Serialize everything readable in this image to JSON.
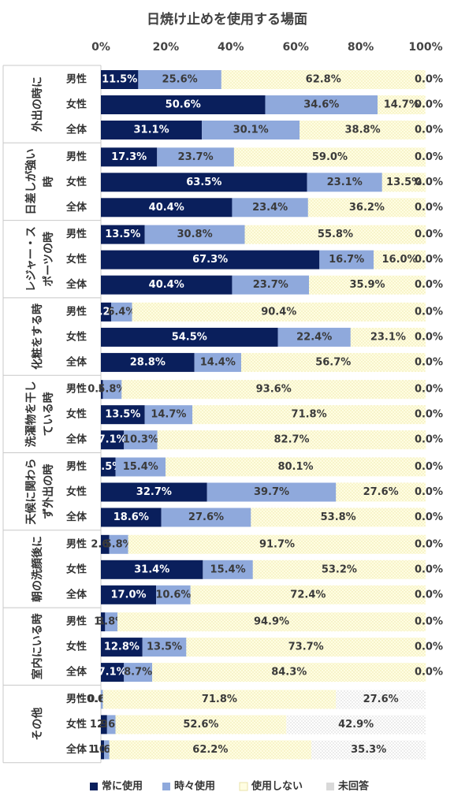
{
  "chart_data": {
    "type": "bar",
    "title": "日焼け止めを使用する場面",
    "stacked": true,
    "orientation": "horizontal",
    "xlim": [
      0,
      100
    ],
    "x_ticks": [
      "0%",
      "20%",
      "40%",
      "60%",
      "80%",
      "100%"
    ],
    "legend_position": "bottom",
    "series": [
      {
        "name": "常に使用",
        "color": "#0a1f5c"
      },
      {
        "name": "時々使用",
        "color": "#8fa9dc"
      },
      {
        "name": "使用しない",
        "color": "#fffde2"
      },
      {
        "name": "未回答",
        "color": "#d9d9d9"
      }
    ],
    "groups": [
      {
        "label_lines": [
          "外出の時に"
        ],
        "rows": [
          {
            "label": "男性",
            "values": [
              11.5,
              25.6,
              62.8,
              0.0
            ],
            "texts": [
              "11.5%",
              "25.6%",
              "62.8%",
              "0.0%"
            ]
          },
          {
            "label": "女性",
            "values": [
              50.6,
              34.6,
              14.7,
              0.0
            ],
            "texts": [
              "50.6%",
              "34.6%",
              "14.7%",
              "0.0%"
            ]
          },
          {
            "label": "全体",
            "values": [
              31.1,
              30.1,
              38.8,
              0.0
            ],
            "texts": [
              "31.1%",
              "30.1%",
              "38.8%",
              "0.0%"
            ]
          }
        ]
      },
      {
        "label_lines": [
          "日差しが強い",
          "時"
        ],
        "rows": [
          {
            "label": "男性",
            "values": [
              17.3,
              23.7,
              59.0,
              0.0
            ],
            "texts": [
              "17.3%",
              "23.7%",
              "59.0%",
              "0.0%"
            ]
          },
          {
            "label": "女性",
            "values": [
              63.5,
              23.1,
              13.5,
              0.0
            ],
            "texts": [
              "63.5%",
              "23.1%",
              "13.5%",
              "0.0%"
            ]
          },
          {
            "label": "全体",
            "values": [
              40.4,
              23.4,
              36.2,
              0.0
            ],
            "texts": [
              "40.4%",
              "23.4%",
              "36.2%",
              "0.0%"
            ]
          }
        ]
      },
      {
        "label_lines": [
          "レジャー・ス",
          "ポーツの時"
        ],
        "rows": [
          {
            "label": "男性",
            "values": [
              13.5,
              30.8,
              55.8,
              0.0
            ],
            "texts": [
              "13.5%",
              "30.8%",
              "55.8%",
              "0.0%"
            ]
          },
          {
            "label": "女性",
            "values": [
              67.3,
              16.7,
              16.0,
              0.0
            ],
            "texts": [
              "67.3%",
              "16.7%",
              "16.0%",
              "0.0%"
            ]
          },
          {
            "label": "全体",
            "values": [
              40.4,
              23.7,
              35.9,
              0.0
            ],
            "texts": [
              "40.4%",
              "23.7%",
              "35.9%",
              "0.0%"
            ]
          }
        ]
      },
      {
        "label_lines": [
          "化粧をする時"
        ],
        "rows": [
          {
            "label": "男性",
            "values": [
              3.2,
              6.4,
              90.4,
              0.0
            ],
            "texts": [
              "3.2%",
              "6.4%",
              "90.4%",
              "0.0%"
            ]
          },
          {
            "label": "女性",
            "values": [
              54.5,
              22.4,
              23.1,
              0.0
            ],
            "texts": [
              "54.5%",
              "22.4%",
              "23.1%",
              "0.0%"
            ]
          },
          {
            "label": "全体",
            "values": [
              28.8,
              14.4,
              56.7,
              0.0
            ],
            "texts": [
              "28.8%",
              "14.4%",
              "56.7%",
              "0.0%"
            ]
          }
        ]
      },
      {
        "label_lines": [
          "洗濯物を干し",
          "ている時"
        ],
        "rows": [
          {
            "label": "男性",
            "values": [
              0.6,
              5.8,
              93.6,
              0.0
            ],
            "texts": [
              "0.6%",
              "5.8%",
              "93.6%",
              "0.0%"
            ]
          },
          {
            "label": "女性",
            "values": [
              13.5,
              14.7,
              71.8,
              0.0
            ],
            "texts": [
              "13.5%",
              "14.7%",
              "71.8%",
              "0.0%"
            ]
          },
          {
            "label": "全体",
            "values": [
              7.1,
              10.3,
              82.7,
              0.0
            ],
            "texts": [
              "7.1%",
              "10.3%",
              "82.7%",
              "0.0%"
            ]
          }
        ]
      },
      {
        "label_lines": [
          "天候に関わら",
          "ず外出の時"
        ],
        "rows": [
          {
            "label": "男性",
            "values": [
              4.5,
              15.4,
              80.1,
              0.0
            ],
            "texts": [
              "4.5%",
              "15.4%",
              "80.1%",
              "0.0%"
            ]
          },
          {
            "label": "女性",
            "values": [
              32.7,
              39.7,
              27.6,
              0.0
            ],
            "texts": [
              "32.7%",
              "39.7%",
              "27.6%",
              "0.0%"
            ]
          },
          {
            "label": "全体",
            "values": [
              18.6,
              27.6,
              53.8,
              0.0
            ],
            "texts": [
              "18.6%",
              "27.6%",
              "53.8%",
              "0.0%"
            ]
          }
        ]
      },
      {
        "label_lines": [
          "朝の洗顔後に"
        ],
        "rows": [
          {
            "label": "男性",
            "values": [
              2.6,
              5.8,
              91.7,
              0.0
            ],
            "texts": [
              "2.6%",
              "5.8%",
              "91.7%",
              "0.0%"
            ]
          },
          {
            "label": "女性",
            "values": [
              31.4,
              15.4,
              53.2,
              0.0
            ],
            "texts": [
              "31.4%",
              "15.4%",
              "53.2%",
              "0.0%"
            ]
          },
          {
            "label": "全体",
            "values": [
              17.0,
              10.6,
              72.4,
              0.0
            ],
            "texts": [
              "17.0%",
              "10.6%",
              "72.4%",
              "0.0%"
            ]
          }
        ]
      },
      {
        "label_lines": [
          "室内にいる時"
        ],
        "rows": [
          {
            "label": "男性",
            "values": [
              1.3,
              3.8,
              94.9,
              0.0
            ],
            "texts": [
              "1.3",
              "3.8%",
              "94.9%",
              "0.0%"
            ]
          },
          {
            "label": "女性",
            "values": [
              12.8,
              13.5,
              73.7,
              0.0
            ],
            "texts": [
              "12.8%",
              "13.5%",
              "73.7%",
              "0.0%"
            ]
          },
          {
            "label": "全体",
            "values": [
              7.1,
              8.7,
              84.3,
              0.0
            ],
            "texts": [
              "7.1%",
              "8.7%",
              "84.3%",
              "0.0%"
            ]
          }
        ]
      },
      {
        "label_lines": [
          "その他"
        ],
        "rows": [
          {
            "label": "男性",
            "values": [
              0.0,
              0.6,
              71.8,
              27.6
            ],
            "texts": [
              "0.0%",
              "0.6%",
              "71.8%",
              "27.6%"
            ]
          },
          {
            "label": "女性",
            "values": [
              1.9,
              2.6,
              52.6,
              42.9
            ],
            "texts": [
              "1.9%",
              "2.6%",
              "52.6%",
              "42.9%"
            ]
          },
          {
            "label": "全体",
            "values": [
              1.0,
              1.6,
              62.2,
              35.3
            ],
            "texts": [
              "1.0%",
              "1.6%",
              "62.2%",
              "35.3%"
            ]
          }
        ]
      }
    ]
  }
}
